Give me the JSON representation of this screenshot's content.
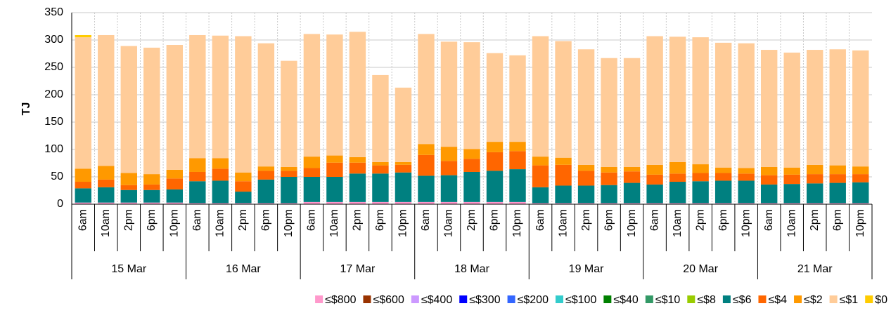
{
  "chart_data": {
    "type": "stacked_bar",
    "y_label": "TJ",
    "categories": [
      "6am",
      "10am",
      "2pm",
      "6pm",
      "10pm",
      "6am",
      "10am",
      "2pm",
      "6pm",
      "10pm",
      "6am",
      "10am",
      "2pm",
      "6pm",
      "10pm",
      "6am",
      "10am",
      "2pm",
      "6pm",
      "10pm",
      "6am",
      "10am",
      "2pm",
      "6pm",
      "10pm",
      "6am",
      "10am",
      "2pm",
      "6pm",
      "10pm",
      "6am",
      "10am",
      "2pm",
      "6pm",
      "10pm"
    ],
    "category_groups": [
      "15 Mar",
      "16 Mar",
      "17 Mar",
      "18 Mar",
      "19 Mar",
      "20 Mar",
      "21 Mar"
    ],
    "ylim": [
      0,
      350
    ],
    "yticks": [
      0,
      50,
      100,
      150,
      200,
      250,
      300,
      350
    ],
    "grid": true,
    "series": [
      {
        "name": "≤$800",
        "color": "#ff99cc",
        "values": [
          3,
          3,
          3,
          3,
          3,
          2,
          2,
          2,
          2,
          2,
          4,
          4,
          4,
          4,
          4,
          4,
          4,
          4,
          4,
          4,
          2,
          2,
          2,
          2,
          2,
          2,
          2,
          2,
          2,
          2,
          2,
          2,
          2,
          2,
          2
        ]
      },
      {
        "name": "≤$600",
        "color": "#993300",
        "values": [
          0,
          0,
          0,
          0,
          0,
          0,
          0,
          0,
          0,
          0,
          0,
          0,
          0,
          0,
          0,
          0,
          0,
          0,
          0,
          0,
          0,
          0,
          0,
          0,
          0,
          0,
          0,
          0,
          0,
          0,
          0,
          0,
          0,
          0,
          0
        ]
      },
      {
        "name": "≤$400",
        "color": "#cc99ff",
        "values": [
          0,
          0,
          0,
          0,
          0,
          0,
          0,
          0,
          0,
          0,
          0,
          0,
          0,
          0,
          0,
          0,
          0,
          0,
          0,
          0,
          0,
          0,
          0,
          0,
          0,
          0,
          0,
          0,
          0,
          0,
          0,
          0,
          0,
          0,
          0
        ]
      },
      {
        "name": "≤$300",
        "color": "#0000ff",
        "values": [
          0,
          0,
          0,
          0,
          0,
          0,
          0,
          0,
          0,
          0,
          0,
          0,
          0,
          0,
          0,
          0,
          0,
          0,
          0,
          0,
          0,
          0,
          0,
          0,
          0,
          0,
          0,
          0,
          0,
          0,
          0,
          0,
          0,
          0,
          0
        ]
      },
      {
        "name": "≤$200",
        "color": "#3366ff",
        "values": [
          0,
          0,
          0,
          0,
          0,
          0,
          0,
          0,
          0,
          0,
          0,
          0,
          0,
          0,
          0,
          0,
          0,
          0,
          0,
          0,
          0,
          0,
          0,
          0,
          0,
          0,
          0,
          0,
          0,
          0,
          0,
          0,
          0,
          0,
          0
        ]
      },
      {
        "name": "≤$100",
        "color": "#33cccc",
        "values": [
          0,
          0,
          0,
          0,
          0,
          0,
          0,
          0,
          0,
          0,
          0,
          0,
          0,
          0,
          0,
          0,
          0,
          0,
          0,
          0,
          0,
          0,
          0,
          0,
          0,
          0,
          0,
          0,
          0,
          0,
          0,
          0,
          0,
          0,
          0
        ]
      },
      {
        "name": "≤$40",
        "color": "#008000",
        "values": [
          0,
          0,
          0,
          0,
          0,
          0,
          0,
          0,
          0,
          0,
          0,
          0,
          0,
          0,
          0,
          0,
          0,
          0,
          0,
          0,
          0,
          0,
          0,
          0,
          0,
          0,
          0,
          0,
          0,
          0,
          0,
          0,
          0,
          0,
          0
        ]
      },
      {
        "name": "≤$10",
        "color": "#339966",
        "values": [
          0,
          0,
          0,
          0,
          0,
          0,
          0,
          0,
          0,
          0,
          0,
          0,
          0,
          0,
          0,
          0,
          0,
          0,
          0,
          0,
          0,
          0,
          0,
          0,
          0,
          0,
          0,
          0,
          0,
          0,
          0,
          0,
          0,
          0,
          0
        ]
      },
      {
        "name": "≤$8",
        "color": "#99cc00",
        "values": [
          0,
          0,
          0,
          0,
          0,
          0,
          0,
          0,
          0,
          0,
          0,
          0,
          0,
          0,
          0,
          0,
          0,
          0,
          0,
          0,
          0,
          0,
          0,
          0,
          0,
          0,
          0,
          0,
          0,
          0,
          0,
          0,
          0,
          0,
          0
        ]
      },
      {
        "name": "≤$6",
        "color": "#008080",
        "values": [
          26,
          28,
          23,
          23,
          24,
          40,
          41,
          21,
          43,
          48,
          46,
          46,
          52,
          52,
          54,
          48,
          49,
          55,
          57,
          60,
          29,
          32,
          32,
          33,
          37,
          34,
          39,
          40,
          41,
          41,
          34,
          35,
          36,
          37,
          38
        ]
      },
      {
        "name": "≤$4",
        "color": "#ff6600",
        "values": [
          12,
          14,
          9,
          10,
          20,
          17,
          22,
          19,
          16,
          11,
          16,
          26,
          20,
          15,
          14,
          38,
          26,
          24,
          34,
          33,
          40,
          38,
          27,
          23,
          21,
          18,
          15,
          15,
          14,
          13,
          17,
          17,
          17,
          16,
          15
        ]
      },
      {
        "name": "≤$2",
        "color": "#ff9900",
        "values": [
          24,
          25,
          22,
          19,
          16,
          25,
          19,
          16,
          8,
          7,
          21,
          13,
          10,
          6,
          5,
          20,
          26,
          18,
          19,
          17,
          16,
          13,
          11,
          10,
          8,
          18,
          21,
          16,
          10,
          10,
          15,
          13,
          17,
          16,
          14
        ]
      },
      {
        "name": "≤$1",
        "color": "#ffcc99",
        "values": [
          240,
          239,
          232,
          231,
          228,
          225,
          224,
          249,
          225,
          194,
          224,
          221,
          229,
          159,
          136,
          201,
          192,
          195,
          162,
          158,
          220,
          213,
          211,
          199,
          199,
          235,
          229,
          232,
          228,
          228,
          214,
          210,
          210,
          212,
          212
        ]
      },
      {
        "name": "$0",
        "color": "#ffcc00",
        "values": [
          4,
          0,
          0,
          0,
          0,
          0,
          0,
          0,
          0,
          0,
          0,
          0,
          0,
          0,
          0,
          0,
          0,
          0,
          0,
          0,
          0,
          0,
          0,
          0,
          0,
          0,
          0,
          0,
          0,
          0,
          0,
          0,
          0,
          0,
          0
        ]
      }
    ]
  }
}
